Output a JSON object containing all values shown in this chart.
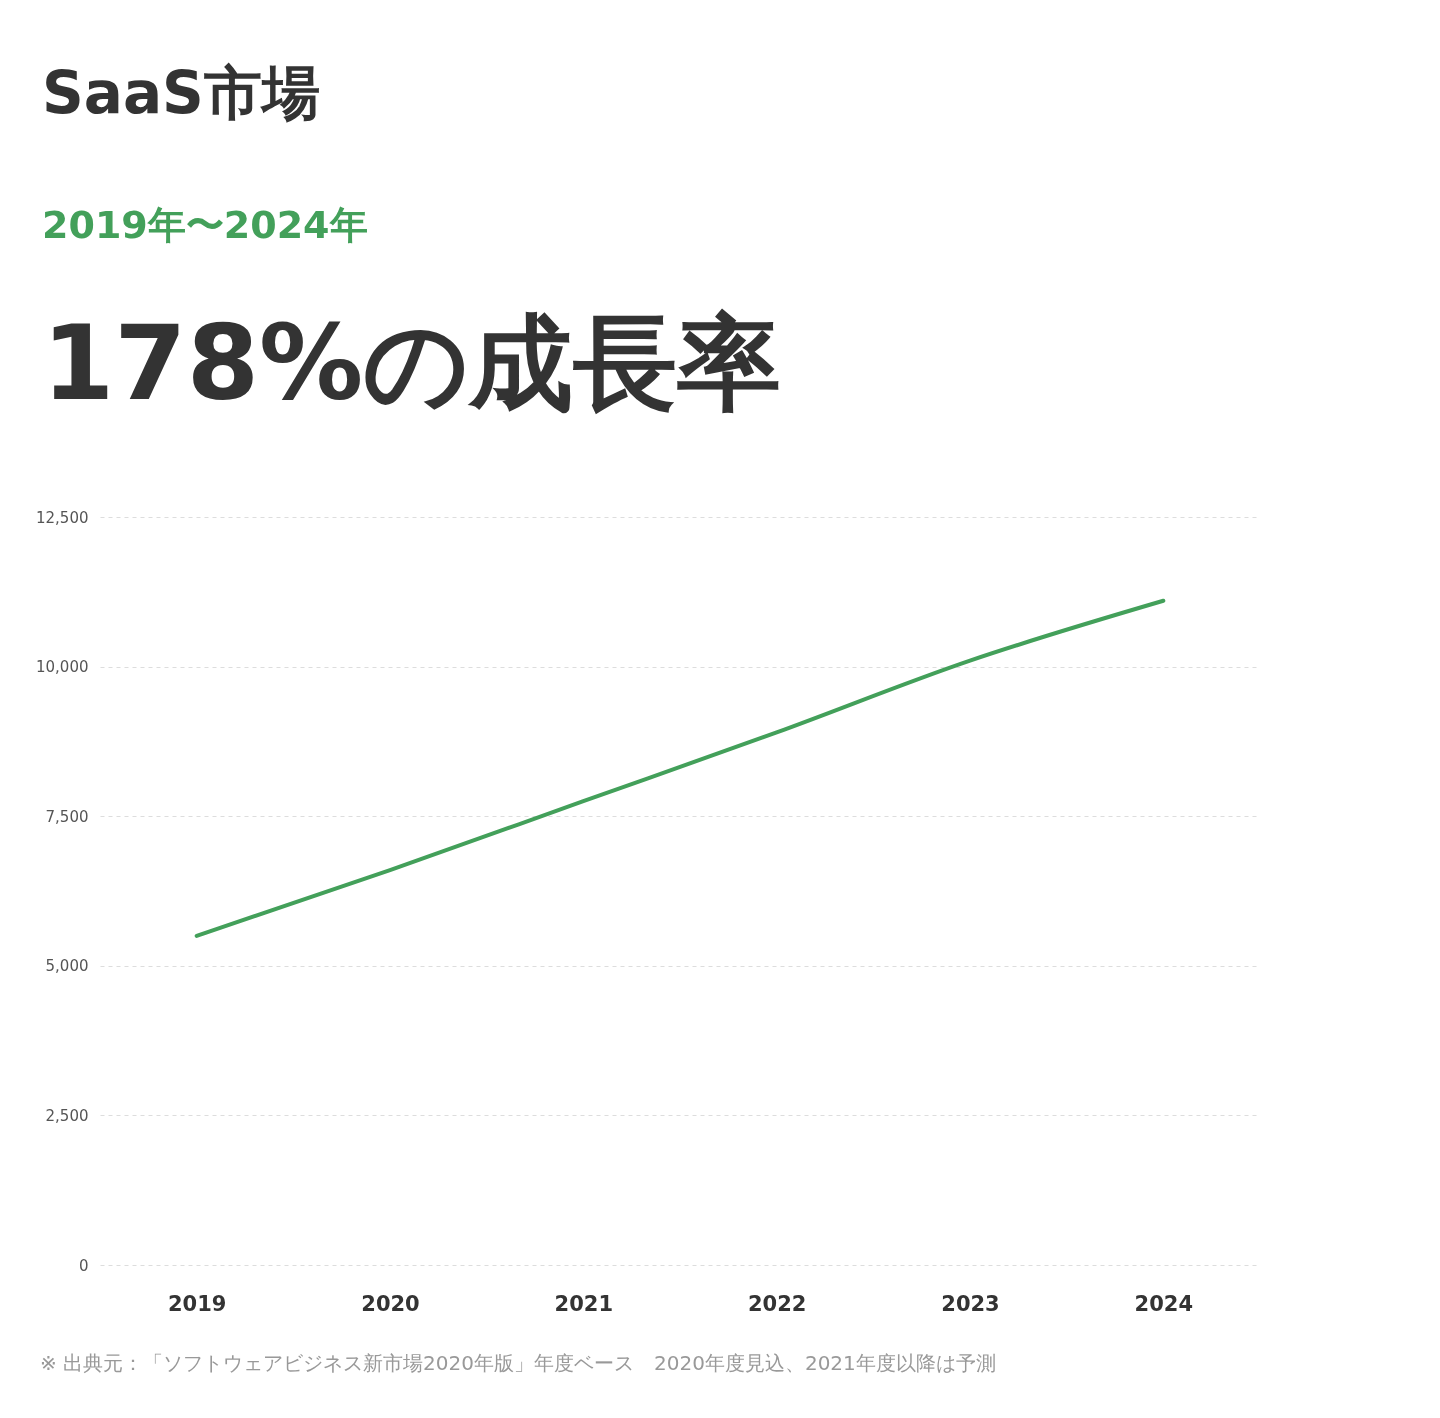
{
  "chart_data": {
    "type": "line",
    "title": "SaaS市場",
    "subtitle": "2019年〜2024年",
    "annotations": [
      "178%の成長率",
      "※ 出典元：「ソフトウェアビジネス新市場2020年版」年度ベース　2020年度見込、2021年度以降は予測"
    ],
    "categories": [
      "2019",
      "2020",
      "2021",
      "2022",
      "2023",
      "2024"
    ],
    "series": [
      {
        "color": "#43a05a",
        "values": [
          5500,
          6600,
          7750,
          8900,
          10100,
          11100
        ]
      }
    ],
    "ylim": [
      0,
      12500
    ],
    "yticks": [
      0,
      {
        "value": 2500,
        "label": "2,500"
      },
      {
        "value": 5000,
        "label": "5,000"
      },
      {
        "value": 7500,
        "label": "7,500"
      },
      {
        "value": 10000,
        "label": "10,000"
      },
      {
        "value": 12500,
        "label": "12,500"
      }
    ],
    "grid": "y",
    "line_style": "solid"
  }
}
